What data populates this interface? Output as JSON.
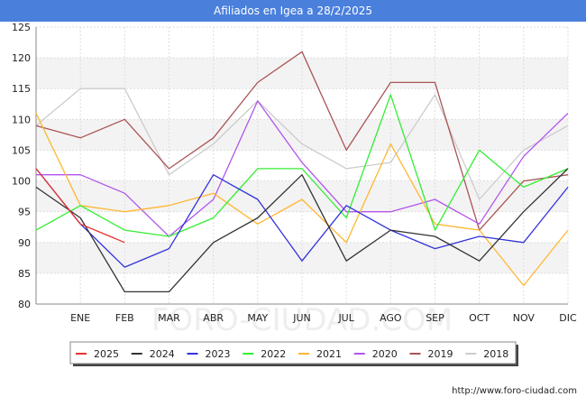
{
  "header": {
    "title": "Afiliados en Igea a 28/2/2025"
  },
  "footer": {
    "url": "http://www.foro-ciudad.com"
  },
  "watermark": "FORO-CIUDAD.COM",
  "chart_data": {
    "type": "line",
    "title": "Afiliados en Igea a 28/2/2025",
    "xlabel": "",
    "ylabel": "",
    "categories": [
      "",
      "ENE",
      "FEB",
      "MAR",
      "ABR",
      "MAY",
      "JUN",
      "JUL",
      "AGO",
      "SEP",
      "OCT",
      "NOV",
      "DIC"
    ],
    "ylim": [
      80,
      125
    ],
    "yticks": [
      80,
      85,
      90,
      95,
      100,
      105,
      110,
      115,
      120,
      125
    ],
    "grid": true,
    "legend_position": "bottom",
    "series": [
      {
        "name": "2025",
        "color": "#e8332e",
        "values": [
          102,
          93,
          90,
          null,
          null,
          null,
          null,
          null,
          null,
          null,
          null,
          null,
          null
        ]
      },
      {
        "name": "2024",
        "color": "#333333",
        "values": [
          99,
          94,
          82,
          82,
          90,
          94,
          101,
          87,
          92,
          91,
          87,
          95,
          102
        ]
      },
      {
        "name": "2023",
        "color": "#3333dd",
        "values": [
          102,
          93,
          86,
          89,
          101,
          97,
          87,
          96,
          92,
          89,
          91,
          90,
          99
        ]
      },
      {
        "name": "2022",
        "color": "#33ee33",
        "values": [
          92,
          96,
          92,
          91,
          94,
          102,
          102,
          94,
          114,
          92,
          105,
          99,
          102
        ]
      },
      {
        "name": "2021",
        "color": "#ffb733",
        "values": [
          111,
          96,
          95,
          96,
          98,
          93,
          97,
          90,
          106,
          93,
          92,
          83,
          92
        ]
      },
      {
        "name": "2020",
        "color": "#b155ec",
        "values": [
          101,
          101,
          98,
          91,
          97,
          113,
          103,
          95,
          95,
          97,
          93,
          104,
          111
        ]
      },
      {
        "name": "2019",
        "color": "#aa5555",
        "values": [
          109,
          107,
          110,
          102,
          107,
          116,
          121,
          105,
          116,
          116,
          92,
          100,
          101
        ]
      },
      {
        "name": "2018",
        "color": "#cccccc",
        "values": [
          109,
          115,
          115,
          101,
          106,
          113,
          106,
          102,
          103,
          114,
          97,
          105,
          109
        ]
      }
    ]
  }
}
